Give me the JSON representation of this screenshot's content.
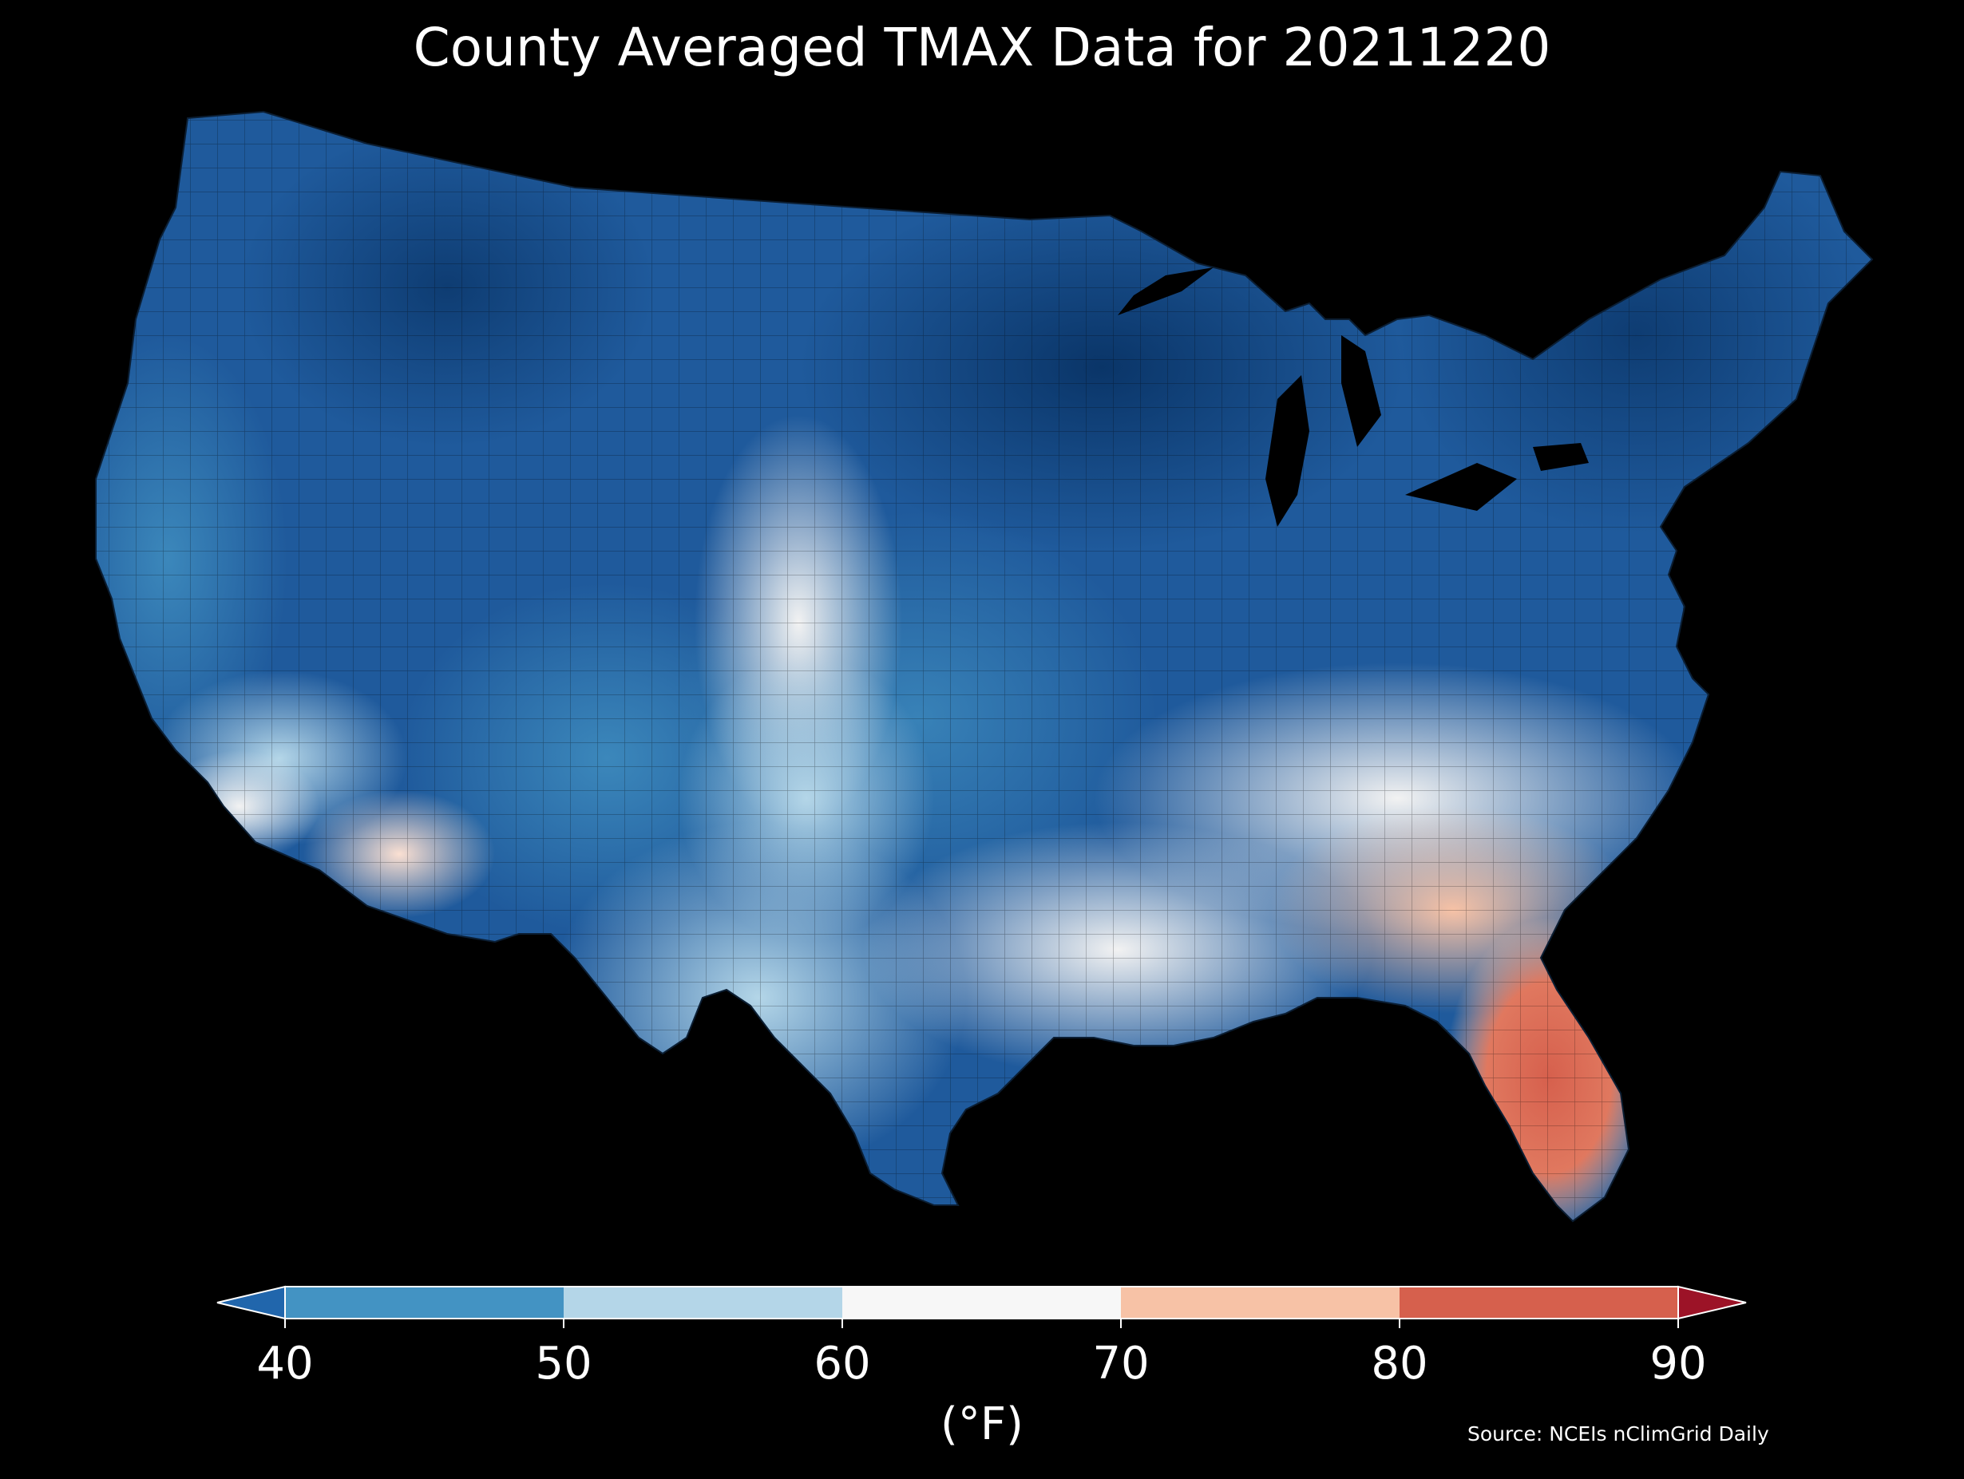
{
  "title": "County Averaged TMAX Data for 20211220",
  "colorbar": {
    "unit_label": "(°F)",
    "ticks": [
      "40",
      "50",
      "60",
      "70",
      "80",
      "90"
    ],
    "bins": [
      {
        "range": "<40",
        "color": "#2166ac"
      },
      {
        "range": "40-50",
        "color": "#4393c3"
      },
      {
        "range": "50-60",
        "color": "#b4d6e8"
      },
      {
        "range": "60-70",
        "color": "#f7f7f7"
      },
      {
        "range": "70-80",
        "color": "#f7c2a6"
      },
      {
        "range": "80-90",
        "color": "#d6604d"
      },
      {
        "range": ">90",
        "color": "#9c1327"
      }
    ],
    "extend": "both"
  },
  "source": "Source: NCEIs nClimGrid Daily",
  "map": {
    "region": "Contiguous United States",
    "variable": "TMAX",
    "date": "20211220",
    "background": "#000000",
    "regional_pattern": [
      {
        "area": "Northern Plains / Upper Midwest",
        "tone": "coldest",
        "color": "#0b3a72"
      },
      {
        "area": "Northern Rockies",
        "tone": "cold",
        "color": "#1f5a9c"
      },
      {
        "area": "Great Lakes / Northeast",
        "tone": "cold",
        "color": "#134d8c"
      },
      {
        "area": "Central Plains",
        "tone": "cool",
        "color": "#3f86c0"
      },
      {
        "area": "High Plains (CO/NM east)",
        "tone": "mild",
        "color": "#e4eef6"
      },
      {
        "area": "Texas",
        "tone": "cool-mild",
        "color": "#8fbedd"
      },
      {
        "area": "Southwest desert",
        "tone": "mild-warm",
        "color": "#fbe0d2"
      },
      {
        "area": "Gulf Coast / Southeast",
        "tone": "mild",
        "color": "#f2f2f2"
      },
      {
        "area": "Georgia / South Carolina",
        "tone": "warm",
        "color": "#f7c2a6"
      },
      {
        "area": "Florida",
        "tone": "warmest",
        "color": "#d6604d"
      }
    ]
  }
}
